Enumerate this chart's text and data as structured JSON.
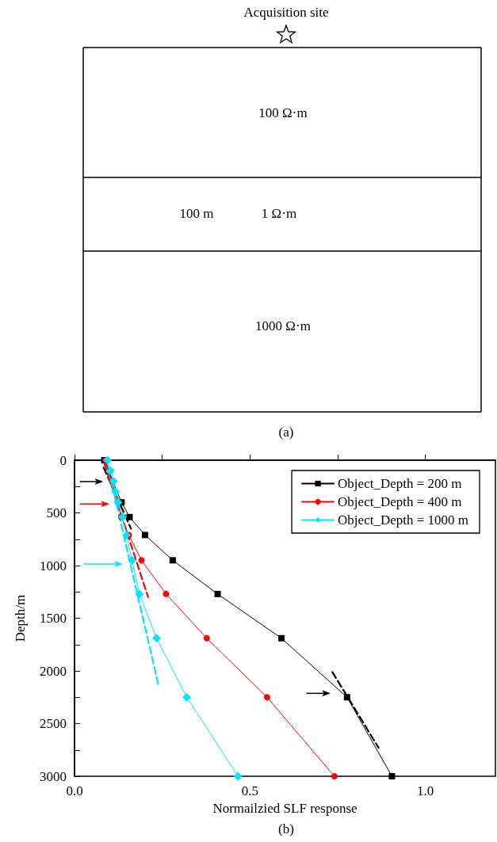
{
  "chart_data": [
    {
      "type": "other",
      "annotations": [
        "Acquisition site",
        "100 Ω·m",
        "100 m",
        "1 Ω·m",
        "1000 Ω·m",
        "(a)"
      ]
    },
    {
      "type": "line",
      "xlabel": "Normailzied SLF response",
      "ylabel": "Depth/m",
      "annotations": [
        "(b)"
      ],
      "xlim": [
        0,
        1.2
      ],
      "xticks": [
        {
          "value": 0,
          "label": "0.0"
        },
        {
          "value": 0.25,
          "label": null
        },
        {
          "value": 0.5,
          "label": "0.5"
        },
        {
          "value": 0.75,
          "label": null
        },
        {
          "value": 1,
          "label": "1.0"
        }
      ],
      "ylim": [
        3000,
        0
      ],
      "yticks": [
        0,
        {
          "value": 250,
          "label": null
        },
        500,
        {
          "value": 750,
          "label": null
        },
        1000,
        {
          "value": 1250,
          "label": null
        },
        1500,
        {
          "value": 1750,
          "label": null
        },
        2000,
        {
          "value": 2250,
          "label": null
        },
        2500,
        {
          "value": 2750,
          "label": null
        },
        3000
      ],
      "grid": false,
      "legend": "top right",
      "series": [
        {
          "name": "Object_Depth = 200 m",
          "color": "#000000",
          "marker": "square",
          "line_style": "solid",
          "x": [
            0.085,
            0.1,
            0.11,
            0.12,
            0.134,
            0.157,
            0.201,
            0.28,
            0.408,
            0.59,
            0.777,
            0.905
          ],
          "values": [
            0,
            null,
            null,
            null,
            400,
            540,
            710,
            950,
            1270,
            1690,
            2250,
            3000
          ]
        },
        {
          "name": "Object_Depth = 400 m",
          "color": "#ff0000",
          "marker": "circle",
          "line_style": "solid",
          "x": [
            0.088,
            0.1,
            0.11,
            0.118,
            0.124,
            0.133,
            0.155,
            0.191,
            0.261,
            0.377,
            0.549,
            0.741
          ],
          "values": [
            0,
            null,
            null,
            null,
            400,
            540,
            710,
            950,
            1270,
            1690,
            2250,
            3000
          ]
        },
        {
          "name": "Object_Depth = 1000 m",
          "color": "#00e5ff",
          "marker": "diamond",
          "line_style": "solid",
          "x": [
            0.094,
            0.103,
            0.111,
            0.117,
            0.124,
            0.137,
            0.148,
            0.164,
            0.185,
            0.234,
            0.32,
            0.466
          ],
          "values": [
            0,
            100,
            200,
            300,
            400,
            540,
            710,
            950,
            1270,
            1690,
            2250,
            3000
          ]
        },
        {
          "color": "#000000",
          "marker": "none",
          "line_style": "dashed",
          "x": [
            0.083,
            0.161
          ],
          "values": [
            70,
            650
          ]
        },
        {
          "color": "#000000",
          "marker": "none",
          "line_style": "dashed",
          "x": [
            0.735,
            0.867
          ],
          "values": [
            2010,
            2730
          ]
        },
        {
          "color": "#ff0000",
          "marker": "none",
          "line_style": "dashed",
          "x": [
            0.085,
            0.21
          ],
          "values": [
            30,
            1300
          ]
        },
        {
          "color": "#00e5ff",
          "marker": "none",
          "line_style": "dashed",
          "x": [
            0.093,
            0.239
          ],
          "values": [
            30,
            2130
          ]
        }
      ]
    }
  ]
}
